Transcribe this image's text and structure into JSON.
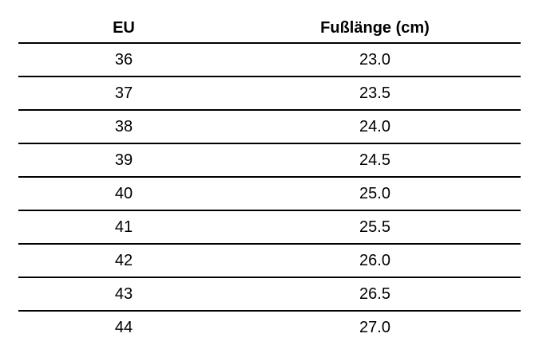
{
  "table": {
    "headers": [
      "EU",
      "Fußlänge (cm)"
    ],
    "rows": [
      [
        "36",
        "23.0"
      ],
      [
        "37",
        "23.5"
      ],
      [
        "38",
        "24.0"
      ],
      [
        "39",
        "24.5"
      ],
      [
        "40",
        "25.0"
      ],
      [
        "41",
        "25.5"
      ],
      [
        "42",
        "26.0"
      ],
      [
        "43",
        "26.5"
      ],
      [
        "44",
        "27.0"
      ]
    ]
  }
}
